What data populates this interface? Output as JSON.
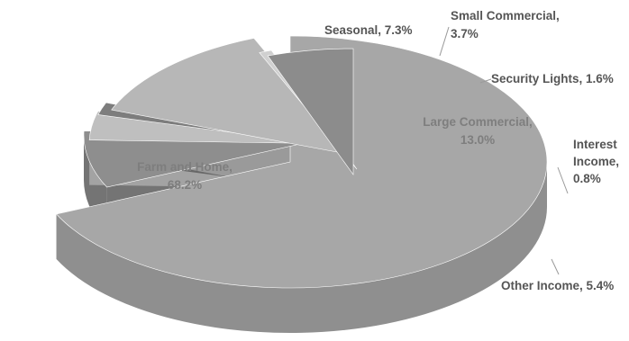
{
  "chart_data": {
    "type": "pie",
    "style": "3d-exploded",
    "title": "",
    "slices": [
      {
        "category": "Farm and Home",
        "value": 68.2,
        "value_label": "68.2%",
        "label_lines": [
          "Farm and Home,",
          "68.2%"
        ],
        "top_color": "#a7a7a7",
        "side_color": "#8f8f8f",
        "exploded": true
      },
      {
        "category": "Seasonal",
        "value": 7.3,
        "value_label": "7.3%",
        "label_lines": [
          "Seasonal, 7.3%"
        ],
        "top_color": "#8e8e8e",
        "side_color": "#747474",
        "exploded": true
      },
      {
        "category": "Small Commercial",
        "value": 3.7,
        "value_label": "3.7%",
        "label_lines": [
          "Small Commercial,",
          "3.7%"
        ],
        "top_color": "#bfbfbf",
        "side_color": "#a3a3a3",
        "exploded": true
      },
      {
        "category": "Security Lights",
        "value": 1.6,
        "value_label": "1.6%",
        "label_lines": [
          "Security Lights, 1.6%"
        ],
        "top_color": "#7d7d7d",
        "side_color": "#676767",
        "exploded": true
      },
      {
        "category": "Large Commercial",
        "value": 13.0,
        "value_label": "13.0%",
        "label_lines": [
          "Large Commercial,",
          "13.0%"
        ],
        "top_color": "#b7b7b7",
        "side_color": "#9a9a9a",
        "exploded": true
      },
      {
        "category": "Interest Income",
        "value": 0.8,
        "value_label": "0.8%",
        "label_lines": [
          "Interest",
          "Income,",
          "0.8%"
        ],
        "top_color": "#d0d0d0",
        "side_color": "#b5b5b5",
        "exploded": true
      },
      {
        "category": "Other Income",
        "value": 5.4,
        "value_label": "5.4%",
        "label_lines": [
          "Other Income, 5.4%"
        ],
        "top_color": "#8c8c8c",
        "side_color": "#5f5f5f",
        "exploded": true
      }
    ],
    "legend": "none",
    "data_labels": "category-and-percent"
  }
}
